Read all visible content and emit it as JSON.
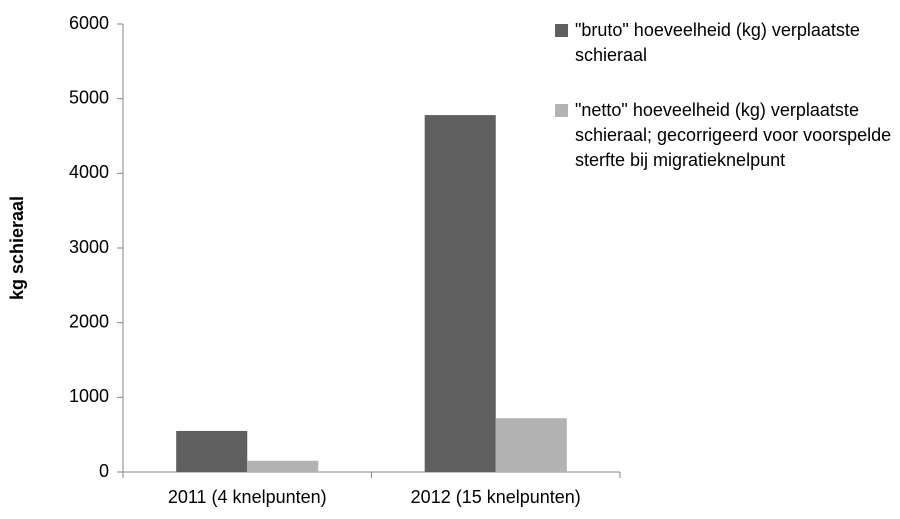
{
  "chart_data": {
    "type": "bar",
    "y_label": "kg schieraal",
    "categories": [
      "2011 (4 knelpunten)",
      "2012 (15 knelpunten)"
    ],
    "series": [
      {
        "name": "\"bruto\" hoeveelheid (kg) verplaatste schieraal",
        "color": "#5f5f5f",
        "values": [
          550,
          4780
        ]
      },
      {
        "name": "\"netto\" hoeveelheid (kg) verplaatste schieraal; gecorrigeerd voor voorspelde sterfte bij migratieknelpunt",
        "color": "#b3b3b3",
        "values": [
          150,
          720
        ]
      }
    ],
    "ylim": [
      0,
      6000
    ],
    "yticks": [
      0,
      1000,
      2000,
      3000,
      4000,
      5000,
      6000
    ],
    "grid": false,
    "legend": "right"
  }
}
